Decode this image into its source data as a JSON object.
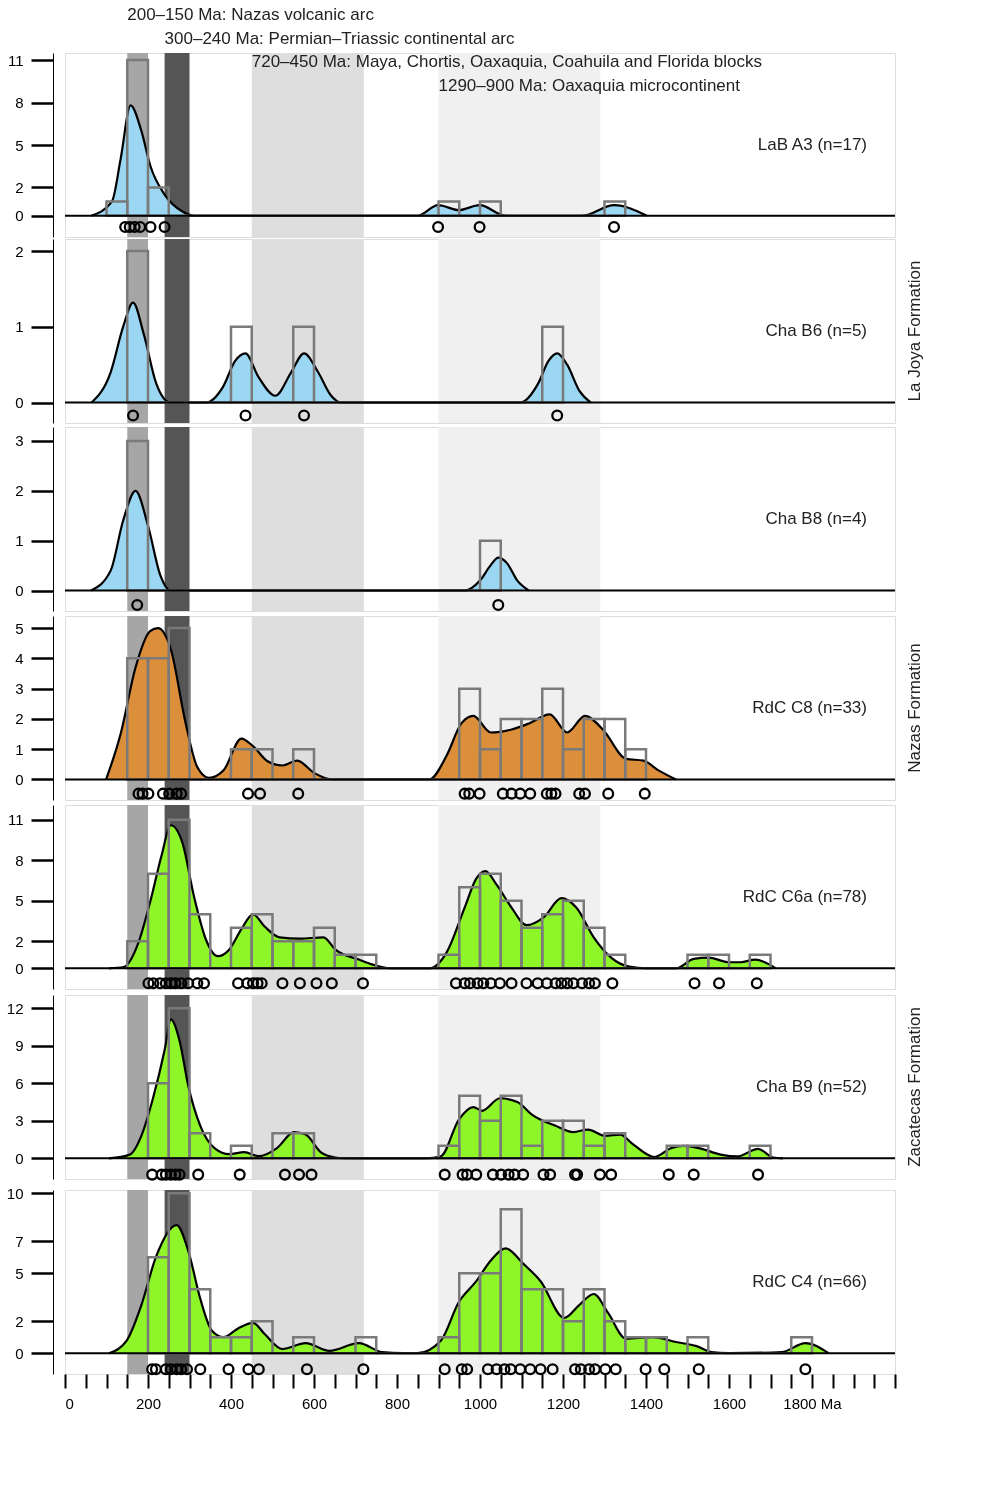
{
  "chart_data": [
    {
      "type": "histogram",
      "bins": [
        100,
        150,
        200,
        250,
        300,
        350,
        400,
        450,
        500,
        550,
        600,
        650,
        700,
        750,
        800,
        850,
        900,
        950,
        1000,
        1050,
        1100,
        1150,
        1200,
        1250,
        1300,
        1350
      ],
      "values": [
        1,
        11,
        2,
        0,
        0,
        0,
        0,
        0,
        0,
        0,
        0,
        0,
        0,
        0,
        0,
        0,
        1,
        0,
        1,
        0,
        0,
        0,
        0,
        0,
        1
      ],
      "color": "#7a7a7a",
      "series": [
        {
          "type": "area",
          "color": "#9bd7f2",
          "x": [
            63,
            113,
            134,
            158,
            184,
            206,
            240,
            283,
            311,
            850,
            899,
            949,
            999,
            1062,
            1246,
            1323,
            1402
          ],
          "values": [
            0,
            1,
            4,
            7.8,
            6,
            3.5,
            1.5,
            0.3,
            0,
            0,
            0.75,
            0.4,
            0.75,
            0,
            0,
            0.75,
            0
          ]
        },
        {
          "type": "scatter",
          "marker": "circle",
          "color": "#000000",
          "x": [
            145,
            156,
            168,
            181,
            206,
            240,
            899,
            999,
            1323
          ],
          "values": [
            -0.8,
            -0.8,
            -0.8,
            -0.8,
            -0.8,
            -0.8,
            -0.8,
            -0.8,
            -0.8
          ]
        }
      ],
      "xlim": [
        0,
        2000
      ],
      "ylim": [
        -1.5,
        11.5
      ],
      "yticks": [
        0,
        2,
        5,
        8,
        11
      ],
      "tick_labels": "y",
      "ref_lines": [
        {
          "axis": "y",
          "value": 0,
          "color": "#000000"
        }
      ],
      "bands": [
        {
          "axis": "x",
          "from": 150,
          "to": 200,
          "label": "200–150 Ma: Nazas volcanic arc",
          "color": "#a6a6a6"
        },
        {
          "axis": "x",
          "from": 240,
          "to": 300,
          "label": "300–240 Ma: Permian–Triassic continental arc",
          "color": "#555555"
        },
        {
          "axis": "x",
          "from": 450,
          "to": 720,
          "label": "720–450 Ma: Maya, Chortis, Oaxaquia, Coahuila and Florida blocks",
          "color": "#dedede"
        },
        {
          "axis": "x",
          "from": 900,
          "to": 1290,
          "label": "1290–900 Ma: Oaxaquia microcontinent",
          "color": "#f0f0f0"
        }
      ],
      "annotations": [
        "LaB A3 (n=17)"
      ]
    },
    {
      "type": "histogram",
      "bins": [
        150,
        200,
        250,
        300,
        350,
        400,
        450,
        500,
        550,
        600,
        650,
        700,
        750,
        800,
        850,
        900,
        950,
        1000,
        1050,
        1100,
        1150,
        1200
      ],
      "values": [
        2,
        0,
        0,
        0,
        0,
        1,
        0,
        0,
        1,
        0,
        0,
        0,
        0,
        0,
        0,
        0,
        0,
        0,
        0,
        0,
        1
      ],
      "color": "#7a7a7a",
      "series": [
        {
          "type": "area",
          "color": "#9bd7f2",
          "x": [
            64,
            110,
            140,
            164,
            190,
            220,
            254,
            340,
            380,
            410,
            435,
            465,
            507,
            545,
            576,
            610,
            640,
            665,
            1097,
            1140,
            1165,
            1186,
            1210,
            1240,
            1267
          ],
          "values": [
            0,
            0.4,
            1.0,
            1.32,
            0.9,
            0.25,
            0,
            0,
            0.2,
            0.55,
            0.65,
            0.35,
            0.09,
            0.4,
            0.65,
            0.4,
            0.1,
            0,
            0,
            0.25,
            0.55,
            0.65,
            0.5,
            0.15,
            0
          ]
        },
        {
          "type": "scatter",
          "marker": "circle",
          "color": "#000000",
          "x": [
            164,
            435,
            576,
            1186
          ],
          "values": [
            -0.17,
            -0.17,
            -0.17,
            -0.17
          ]
        }
      ],
      "xlim": [
        0,
        2000
      ],
      "ylim": [
        -0.27,
        2.16
      ],
      "yticks": [
        0,
        1,
        2
      ],
      "tick_labels": "y",
      "ref_lines": [
        {
          "axis": "y",
          "value": 0,
          "color": "#000000"
        }
      ],
      "bands": [
        {
          "axis": "x",
          "from": 150,
          "to": 200,
          "color": "#a6a6a6"
        },
        {
          "axis": "x",
          "from": 240,
          "to": 300,
          "color": "#555555"
        },
        {
          "axis": "x",
          "from": 450,
          "to": 720,
          "color": "#dedede"
        },
        {
          "axis": "x",
          "from": 900,
          "to": 1290,
          "color": "#f0f0f0"
        }
      ],
      "annotations": [
        "Cha B6 (n=5)",
        "La Joya Formation"
      ]
    },
    {
      "type": "histogram",
      "bins": [
        150,
        200,
        250,
        300,
        350,
        400,
        450,
        500,
        550,
        600,
        650,
        700,
        750,
        800,
        850,
        900,
        950,
        1000,
        1050
      ],
      "values": [
        3,
        0,
        0,
        0,
        0,
        0,
        0,
        0,
        0,
        0,
        0,
        0,
        0,
        0,
        0,
        0,
        0,
        1
      ],
      "color": "#7a7a7a",
      "series": [
        {
          "type": "area",
          "color": "#9bd7f2",
          "x": [
            63,
            110,
            140,
            170,
            200,
            230,
            254,
            963,
            1000,
            1025,
            1044,
            1065,
            1090,
            1118
          ],
          "values": [
            0,
            0.4,
            1.4,
            2.0,
            1.3,
            0.3,
            0,
            0,
            0.2,
            0.5,
            0.66,
            0.55,
            0.2,
            0
          ]
        },
        {
          "type": "scatter",
          "marker": "circle",
          "color": "#000000",
          "x": [
            174,
            1044
          ],
          "values": [
            -0.29,
            -0.29
          ]
        }
      ],
      "xlim": [
        0,
        2000
      ],
      "ylim": [
        -0.41,
        3.28
      ],
      "yticks": [
        0,
        1,
        2,
        3
      ],
      "tick_labels": "y",
      "ref_lines": [
        {
          "axis": "y",
          "value": 0,
          "color": "#000000"
        }
      ],
      "bands": [
        {
          "axis": "x",
          "from": 150,
          "to": 200,
          "color": "#a6a6a6"
        },
        {
          "axis": "x",
          "from": 240,
          "to": 300,
          "color": "#555555"
        },
        {
          "axis": "x",
          "from": 450,
          "to": 720,
          "color": "#dedede"
        },
        {
          "axis": "x",
          "from": 900,
          "to": 1290,
          "color": "#f0f0f0"
        }
      ],
      "annotations": [
        "Cha B8 (n=4)"
      ]
    },
    {
      "type": "histogram",
      "bins": [
        150,
        200,
        250,
        300,
        350,
        400,
        450,
        500,
        550,
        600,
        650,
        700,
        750,
        800,
        850,
        900,
        950,
        1000,
        1050,
        1100,
        1150,
        1200,
        1250,
        1300,
        1350,
        1400
      ],
      "values": [
        4,
        4,
        5,
        0,
        0,
        1,
        1,
        0,
        1,
        0,
        0,
        0,
        0,
        0,
        0,
        0,
        3,
        1,
        2,
        2,
        3,
        1,
        2,
        2,
        1
      ],
      "color": "#7a7a7a",
      "series": [
        {
          "type": "area",
          "color": "#dc8f3b",
          "x": [
            99,
            134,
            170,
            205,
            224,
            255,
            290,
            319,
            347,
            382,
            425,
            453,
            488,
            524,
            559,
            602,
            644,
            878,
            920,
            955,
            984,
            1026,
            1076,
            1118,
            1168,
            1210,
            1253,
            1296,
            1352,
            1394,
            1430,
            1472
          ],
          "values": [
            0,
            1.5,
            3.7,
            4.9,
            5.0,
            4.3,
            1.9,
            0.4,
            0.05,
            0.3,
            1.35,
            1.1,
            0.6,
            0.46,
            0.62,
            0.2,
            0,
            0,
            0.8,
            1.85,
            2.1,
            1.55,
            1.65,
            1.85,
            2.15,
            1.55,
            2.1,
            1.65,
            0.68,
            0.62,
            0.3,
            0
          ]
        },
        {
          "type": "scatter",
          "marker": "circle",
          "color": "#000000",
          "x": [
            177,
            187,
            201,
            236,
            251,
            269,
            280,
            441,
            470,
            562,
            963,
            974,
            999,
            1055,
            1076,
            1097,
            1121,
            1161,
            1172,
            1182,
            1239,
            1253,
            1309,
            1397
          ],
          "values": [
            -0.47,
            -0.47,
            -0.47,
            -0.47,
            -0.47,
            -0.47,
            -0.47,
            -0.47,
            -0.47,
            -0.47,
            -0.47,
            -0.47,
            -0.47,
            -0.47,
            -0.47,
            -0.47,
            -0.47,
            -0.47,
            -0.47,
            -0.47,
            -0.47,
            -0.47,
            -0.47,
            -0.47
          ]
        }
      ],
      "xlim": [
        0,
        2000
      ],
      "ylim": [
        -0.68,
        5.4
      ],
      "yticks": [
        0,
        1,
        2,
        3,
        4,
        5
      ],
      "tick_labels": "y",
      "ref_lines": [
        {
          "axis": "y",
          "value": 0,
          "color": "#000000"
        }
      ],
      "bands": [
        {
          "axis": "x",
          "from": 150,
          "to": 200,
          "color": "#a6a6a6"
        },
        {
          "axis": "x",
          "from": 240,
          "to": 300,
          "color": "#555555"
        },
        {
          "axis": "x",
          "from": 450,
          "to": 720,
          "color": "#dedede"
        },
        {
          "axis": "x",
          "from": 900,
          "to": 1290,
          "color": "#f0f0f0"
        }
      ],
      "annotations": [
        "RdC C8 (n=33)",
        "Nazas Formation"
      ]
    },
    {
      "type": "histogram",
      "bins": [
        150,
        200,
        250,
        300,
        350,
        400,
        450,
        500,
        550,
        600,
        650,
        700,
        750,
        800,
        850,
        900,
        950,
        1000,
        1050,
        1100,
        1150,
        1200,
        1250,
        1300,
        1350,
        1400,
        1450,
        1500,
        1550,
        1600,
        1650,
        1700
      ],
      "values": [
        2,
        7,
        11,
        4,
        0,
        3,
        4,
        2,
        2,
        3,
        1,
        1,
        0,
        0,
        0,
        1,
        6,
        7,
        5,
        3,
        4,
        5,
        3,
        1,
        0,
        0,
        0,
        1,
        1,
        0,
        1
      ],
      "color": "#7a7a7a",
      "series": [
        {
          "type": "area",
          "color": "#8ef529",
          "x": [
            106,
            142,
            177,
            205,
            233,
            255,
            283,
            311,
            340,
            368,
            396,
            425,
            453,
            481,
            517,
            566,
            623,
            651,
            708,
            750,
            786,
            878,
            920,
            963,
            991,
            1013,
            1040,
            1076,
            1112,
            1154,
            1196,
            1232,
            1274,
            1316,
            1359,
            1402,
            1472,
            1515,
            1550,
            1600,
            1628,
            1663,
            1713
          ],
          "values": [
            0,
            0.1,
            1.9,
            4.9,
            8.4,
            10.6,
            9.3,
            5.3,
            2.1,
            0.9,
            1.4,
            2.9,
            4.0,
            3.1,
            2.3,
            2.2,
            2.3,
            1.4,
            0.65,
            0.2,
            0,
            0,
            1.2,
            4.5,
            6.65,
            7.2,
            6.2,
            4.5,
            3.2,
            3.8,
            5.2,
            4.5,
            2.3,
            0.8,
            0.13,
            0,
            0,
            0.7,
            0.8,
            0.45,
            0.45,
            0.65,
            0
          ]
        },
        {
          "type": "scatter",
          "marker": "circle",
          "color": "#000000",
          "x": [
            201,
            213,
            229,
            243,
            255,
            266,
            280,
            297,
            319,
            335,
            417,
            439,
            453,
            464,
            474,
            524,
            566,
            606,
            643,
            718,
            942,
            963,
            976,
            994,
            1008,
            1026,
            1048,
            1076,
            1112,
            1139,
            1161,
            1182,
            1196,
            1210,
            1225,
            1246,
            1263,
            1277,
            1319,
            1517,
            1576,
            1667
          ],
          "values": [
            -1.1,
            -1.1,
            -1.1,
            -1.1,
            -1.1,
            -1.1,
            -1.1,
            -1.1,
            -1.1,
            -1.1,
            -1.1,
            -1.1,
            -1.1,
            -1.1,
            -1.1,
            -1.1,
            -1.1,
            -1.1,
            -1.1,
            -1.1,
            -1.1,
            -1.1,
            -1.1,
            -1.1,
            -1.1,
            -1.1,
            -1.1,
            -1.1,
            -1.1,
            -1.1,
            -1.1,
            -1.1,
            -1.1,
            -1.1,
            -1.1,
            -1.1,
            -1.1,
            -1.1,
            -1.1,
            -1.1,
            -1.1,
            -1.1
          ]
        }
      ],
      "xlim": [
        0,
        2000
      ],
      "ylim": [
        -1.53,
        12.1
      ],
      "yticks": [
        0,
        2,
        5,
        8,
        11
      ],
      "tick_labels": "y",
      "ref_lines": [
        {
          "axis": "y",
          "value": 0,
          "color": "#000000"
        }
      ],
      "bands": [
        {
          "axis": "x",
          "from": 150,
          "to": 200,
          "color": "#a6a6a6"
        },
        {
          "axis": "x",
          "from": 240,
          "to": 300,
          "color": "#555555"
        },
        {
          "axis": "x",
          "from": 450,
          "to": 720,
          "color": "#dedede"
        },
        {
          "axis": "x",
          "from": 900,
          "to": 1290,
          "color": "#f0f0f0"
        }
      ],
      "annotations": [
        "RdC C6a (n=78)"
      ]
    },
    {
      "type": "histogram",
      "bins": [
        200,
        250,
        300,
        350,
        400,
        450,
        500,
        550,
        600,
        650,
        700,
        750,
        800,
        850,
        900,
        950,
        1000,
        1050,
        1100,
        1150,
        1200,
        1250,
        1300,
        1350,
        1400,
        1450,
        1500,
        1550,
        1600,
        1650,
        1700
      ],
      "values": [
        6,
        12,
        2,
        0,
        1,
        0,
        2,
        2,
        0,
        0,
        0,
        0,
        0,
        0,
        1,
        5,
        3,
        5,
        1,
        3,
        3,
        1,
        2,
        0,
        0,
        1,
        1,
        0,
        0,
        1
      ],
      "color": "#7a7a7a",
      "series": [
        {
          "type": "area",
          "color": "#8ef529",
          "x": [
            106,
            156,
            184,
            212,
            241,
            255,
            276,
            297,
            326,
            361,
            396,
            432,
            467,
            510,
            552,
            580,
            616,
            651,
            680,
            870,
            906,
            949,
            984,
            1005,
            1048,
            1090,
            1125,
            1182,
            1225,
            1260,
            1302,
            1338,
            1366,
            1402,
            1420,
            1460,
            1490,
            1530,
            1580,
            1620,
            1670,
            1706,
            1730
          ],
          "values": [
            0,
            0.3,
            1.8,
            4.8,
            8.8,
            11.1,
            9.4,
            5.8,
            2.6,
            0.8,
            0.33,
            0.5,
            0.17,
            0.8,
            2.1,
            1.9,
            0.5,
            0.07,
            0,
            0,
            0.17,
            3.1,
            4.1,
            3.8,
            4.8,
            4.5,
            3.5,
            2.6,
            2.1,
            2.3,
            1.8,
            1.9,
            1.2,
            0.33,
            0.1,
            0.8,
            1.0,
            0.8,
            0.3,
            0.15,
            0.76,
            0.07,
            0
          ]
        },
        {
          "type": "scatter",
          "marker": "circle",
          "color": "#000000",
          "x": [
            210,
            233,
            243,
            255,
            266,
            276,
            321,
            421,
            530,
            564,
            594,
            915,
            958,
            969,
            991,
            1031,
            1051,
            1069,
            1083,
            1104,
            1153,
            1169,
            1229,
            1234,
            1289,
            1316,
            1455,
            1515,
            1670
          ],
          "values": [
            -1.3,
            -1.3,
            -1.3,
            -1.3,
            -1.3,
            -1.3,
            -1.3,
            -1.3,
            -1.3,
            -1.3,
            -1.3,
            -1.3,
            -1.3,
            -1.3,
            -1.3,
            -1.3,
            -1.3,
            -1.3,
            -1.3,
            -1.3,
            -1.3,
            -1.3,
            -1.3,
            -1.3,
            -1.3,
            -1.3,
            -1.3,
            -1.3,
            -1.3
          ]
        }
      ],
      "xlim": [
        0,
        2000
      ],
      "ylim": [
        -1.65,
        13.05
      ],
      "yticks": [
        0,
        3,
        6,
        9,
        12
      ],
      "tick_labels": "y",
      "ref_lines": [
        {
          "axis": "y",
          "value": 0,
          "color": "#000000"
        }
      ],
      "bands": [
        {
          "axis": "x",
          "from": 150,
          "to": 200,
          "color": "#a6a6a6"
        },
        {
          "axis": "x",
          "from": 240,
          "to": 300,
          "color": "#555555"
        },
        {
          "axis": "x",
          "from": 450,
          "to": 720,
          "color": "#dedede"
        },
        {
          "axis": "x",
          "from": 900,
          "to": 1290,
          "color": "#f0f0f0"
        }
      ],
      "annotations": [
        "Cha B9 (n=52)",
        "Zacatecas Formation"
      ]
    },
    {
      "type": "histogram",
      "bins": [
        200,
        250,
        300,
        350,
        400,
        450,
        500,
        550,
        600,
        650,
        700,
        750,
        800,
        850,
        900,
        950,
        1000,
        1050,
        1100,
        1150,
        1200,
        1250,
        1300,
        1350,
        1400,
        1450,
        1500,
        1550,
        1600,
        1650,
        1700,
        1750,
        1800
      ],
      "values": [
        6,
        10,
        4,
        1,
        1,
        2,
        0,
        1,
        0,
        0,
        1,
        0,
        0,
        0,
        1,
        5,
        5,
        9,
        4,
        4,
        2,
        4,
        2,
        1,
        1,
        0,
        1,
        0,
        0,
        0,
        0,
        1
      ],
      "color": "#7a7a7a",
      "series": [
        {
          "type": "area",
          "color": "#8ef529",
          "x": [
            106,
            149,
            184,
            219,
            269,
            297,
            326,
            354,
            382,
            417,
            453,
            481,
            524,
            580,
            637,
            708,
            764,
            815,
            849,
            906,
            949,
            991,
            1026,
            1062,
            1104,
            1146,
            1203,
            1239,
            1274,
            1309,
            1352,
            1416,
            1472,
            1522,
            1557,
            1600,
            1727,
            1784,
            1840
          ],
          "values": [
            0,
            0.8,
            3.0,
            6.0,
            8.0,
            6.4,
            3.4,
            1.4,
            1.0,
            1.55,
            1.9,
            1.2,
            0.26,
            0.63,
            0.15,
            0.63,
            0.07,
            0,
            0,
            0.8,
            3.2,
            4.5,
            5.8,
            6.55,
            5.6,
            4.5,
            2.2,
            3.0,
            3.7,
            2.5,
            0.9,
            1.0,
            0.7,
            0.44,
            0.07,
            0,
            0.07,
            0.63,
            0
          ]
        },
        {
          "type": "scatter",
          "marker": "circle",
          "color": "#000000",
          "x": [
            210,
            219,
            243,
            255,
            269,
            280,
            294,
            326,
            394,
            442,
            467,
            583,
            719,
            915,
            956,
            969,
            1019,
            1040,
            1059,
            1074,
            1097,
            1121,
            1146,
            1175,
            1229,
            1243,
            1263,
            1277,
            1302,
            1327,
            1399,
            1444,
            1527,
            1784
          ],
          "values": [
            -1.0,
            -1.0,
            -1.0,
            -1.0,
            -1.0,
            -1.0,
            -1.0,
            -1.0,
            -1.0,
            -1.0,
            -1.0,
            -1.0,
            -1.0,
            -1.0,
            -1.0,
            -1.0,
            -1.0,
            -1.0,
            -1.0,
            -1.0,
            -1.0,
            -1.0,
            -1.0,
            -1.0,
            -1.0,
            -1.0,
            -1.0,
            -1.0,
            -1.0,
            -1.0,
            -1.0,
            -1.0,
            -1.0,
            -1.0
          ]
        }
      ],
      "xlim": [
        0,
        2000
      ],
      "ylim": [
        -1.3,
        10.2
      ],
      "yticks": [
        0,
        2,
        5,
        7,
        10
      ],
      "xticks": [
        0,
        {
          "value": 50,
          "label": null
        },
        {
          "value": 100,
          "label": null
        },
        {
          "value": 150,
          "label": null
        },
        200,
        {
          "value": 250,
          "label": null
        },
        {
          "value": 300,
          "label": null
        },
        {
          "value": 350,
          "label": null
        },
        400,
        {
          "value": 450,
          "label": null
        },
        {
          "value": 500,
          "label": null
        },
        {
          "value": 550,
          "label": null
        },
        600,
        {
          "value": 650,
          "label": null
        },
        {
          "value": 700,
          "label": null
        },
        {
          "value": 750,
          "label": null
        },
        800,
        {
          "value": 850,
          "label": null
        },
        {
          "value": 900,
          "label": null
        },
        {
          "value": 950,
          "label": null
        },
        1000,
        {
          "value": 1050,
          "label": null
        },
        {
          "value": 1100,
          "label": null
        },
        {
          "value": 1150,
          "label": null
        },
        1200,
        {
          "value": 1250,
          "label": null
        },
        {
          "value": 1300,
          "label": null
        },
        {
          "value": 1350,
          "label": null
        },
        1400,
        {
          "value": 1450,
          "label": null
        },
        {
          "value": 1500,
          "label": null
        },
        {
          "value": 1550,
          "label": null
        },
        1600,
        {
          "value": 1650,
          "label": null
        },
        {
          "value": 1700,
          "label": null
        },
        {
          "value": 1750,
          "label": null
        },
        {
          "value": 1800,
          "label": "1800 Ma"
        },
        {
          "value": 1850,
          "label": null
        },
        {
          "value": 1900,
          "label": null
        },
        {
          "value": 1950,
          "label": null
        },
        {
          "value": 2000,
          "label": null
        }
      ],
      "ref_lines": [
        {
          "axis": "y",
          "value": 0,
          "color": "#000000"
        }
      ],
      "bands": [
        {
          "axis": "x",
          "from": 150,
          "to": 200,
          "color": "#a6a6a6"
        },
        {
          "axis": "x",
          "from": 240,
          "to": 300,
          "color": "#555555"
        },
        {
          "axis": "x",
          "from": 450,
          "to": 720,
          "color": "#dedede"
        },
        {
          "axis": "x",
          "from": 900,
          "to": 1290,
          "color": "#f0f0f0"
        }
      ],
      "annotations": [
        "RdC C4 (n=66)"
      ]
    }
  ]
}
